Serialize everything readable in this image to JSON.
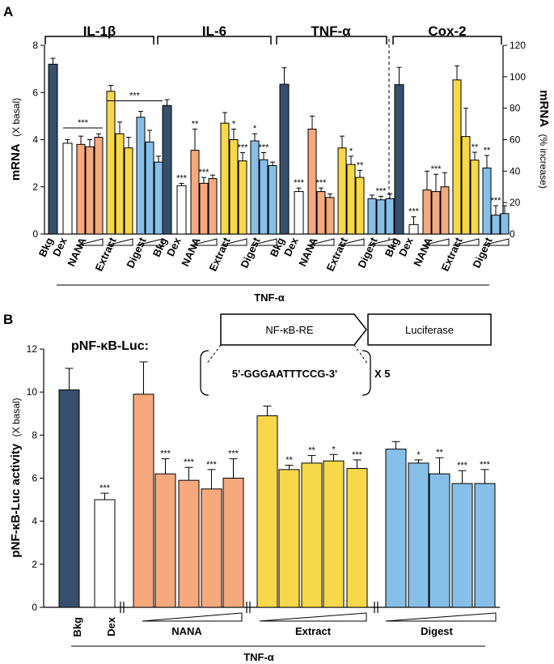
{
  "panel_labels": {
    "a": "A",
    "b": "B"
  },
  "colors": {
    "bkg": "#364f6b",
    "dex": "#ffffff",
    "nana": "#f5a97c",
    "extract": "#f7d84a",
    "digest": "#86bfe8",
    "axis": "#000000"
  },
  "panelA": {
    "left_axis": {
      "label_main": "mRNA",
      "label_unit": "(X basal)",
      "ticks": [
        "0",
        "2",
        "4",
        "6",
        "8"
      ]
    },
    "right_axis": {
      "label_main": "mRNA",
      "label_unit": "(% increase)",
      "ticks": [
        "0",
        "20",
        "40",
        "60",
        "80",
        "100",
        "120"
      ]
    },
    "groups": [
      {
        "title": "IL-1β"
      },
      {
        "title": "IL-6"
      },
      {
        "title": "TNF-α"
      },
      {
        "title": "Cox-2"
      }
    ],
    "xlabels": [
      "Bkg",
      "Dex",
      "NANA",
      "Extract",
      "Digest"
    ],
    "bottom_label": "TNF-α"
  },
  "panelB": {
    "axis": {
      "label_main": "pNF-κB-Luc activity",
      "label_unit": "(X basal)",
      "ticks": [
        "0",
        "2",
        "4",
        "6",
        "8",
        "10",
        "12"
      ]
    },
    "construct": {
      "title": "pNF-κB-Luc:",
      "box1": "NF-κB-RE",
      "box2": "Luciferase",
      "sequence": "5'-GGGAATTTCCG-3'",
      "repeat": "X 5"
    },
    "xlabels": [
      "Bkg",
      "Dex",
      "NANA",
      "Extract",
      "Digest"
    ],
    "bottom_label": "TNF-α"
  },
  "chart_data": [
    {
      "type": "bar",
      "title": "IL-1β",
      "ylabel": "mRNA (X basal)",
      "ylim": [
        0,
        8
      ],
      "categories": [
        "Bkg",
        "Dex",
        "NANA-1",
        "NANA-2",
        "NANA-3",
        "Extract-1",
        "Extract-2",
        "Extract-3",
        "Digest-1",
        "Digest-2",
        "Digest-3"
      ],
      "values": [
        7.2,
        3.85,
        3.8,
        3.7,
        4.1,
        6.05,
        4.25,
        3.65,
        4.95,
        3.9,
        3.05
      ],
      "errors": [
        0.25,
        0.15,
        0.35,
        0.3,
        0.15,
        0.25,
        0.5,
        0.45,
        0.25,
        0.5,
        0.25
      ],
      "annotations": [
        {
          "label": "***",
          "from": "Dex",
          "to": "NANA-3",
          "value": 4.5
        },
        {
          "label": "***",
          "from": "Extract-1",
          "to": "Digest-3",
          "value": 5.65
        }
      ]
    },
    {
      "type": "bar",
      "title": "IL-6",
      "ylabel": "mRNA (X basal)",
      "ylim": [
        0,
        8
      ],
      "categories": [
        "Bkg",
        "Dex",
        "NANA-1",
        "NANA-2",
        "NANA-3",
        "Extract-1",
        "Extract-2",
        "Extract-3",
        "Digest-1",
        "Digest-2",
        "Digest-3"
      ],
      "values": [
        5.45,
        2.05,
        3.55,
        2.15,
        2.35,
        4.7,
        4.0,
        3.1,
        3.95,
        3.15,
        2.9
      ],
      "errors": [
        0.25,
        0.1,
        0.9,
        0.25,
        0.15,
        0.45,
        0.45,
        0.35,
        0.3,
        0.3,
        0.15
      ],
      "stars": [
        "",
        "***",
        "**",
        "***",
        "",
        "",
        "*",
        "***",
        "*",
        "***",
        ""
      ]
    },
    {
      "type": "bar",
      "title": "TNF-α",
      "ylabel": "mRNA (X basal)",
      "ylim": [
        0,
        8
      ],
      "categories": [
        "Bkg",
        "Dex",
        "NANA-1",
        "NANA-2",
        "NANA-3",
        "Extract-1",
        "Extract-2",
        "Extract-3",
        "Digest-1",
        "Digest-2",
        "Digest-3"
      ],
      "values": [
        6.35,
        1.8,
        4.45,
        1.8,
        1.55,
        3.65,
        2.95,
        2.4,
        1.5,
        1.45,
        1.5
      ],
      "errors": [
        0.7,
        0.15,
        0.55,
        0.15,
        0.15,
        0.5,
        0.35,
        0.3,
        0.15,
        0.15,
        0.2
      ],
      "stars": [
        "",
        "***",
        "",
        "***",
        "",
        "",
        "*",
        "**",
        "",
        "***",
        ""
      ]
    },
    {
      "type": "bar",
      "title": "Cox-2",
      "ylabel": "mRNA (% increase)",
      "ylim": [
        0,
        120
      ],
      "categories": [
        "Bkg",
        "Dex",
        "NANA-1",
        "NANA-2",
        "NANA-3",
        "Extract-1",
        "Extract-2",
        "Extract-3",
        "Digest-1",
        "Digest-2",
        "Digest-3"
      ],
      "values": [
        95,
        6,
        28,
        27,
        30,
        98,
        62,
        47,
        42,
        12,
        13
      ],
      "errors": [
        11,
        5,
        12,
        11,
        9,
        9,
        18,
        5,
        8,
        6,
        5
      ],
      "stars": [
        "",
        "***",
        "",
        "***",
        "",
        "",
        "",
        "**",
        "**",
        "***",
        ""
      ]
    },
    {
      "type": "bar",
      "title": "pNF-κB-Luc",
      "ylabel": "pNF-κB-Luc activity (X basal)",
      "ylim": [
        0,
        12
      ],
      "categories": [
        "Bkg",
        "Dex",
        "NANA-1",
        "NANA-2",
        "NANA-3",
        "NANA-4",
        "NANA-5",
        "Extract-1",
        "Extract-2",
        "Extract-3",
        "Extract-4",
        "Extract-5",
        "Digest-1",
        "Digest-2",
        "Digest-3",
        "Digest-4",
        "Digest-5"
      ],
      "values": [
        10.1,
        5.0,
        9.9,
        6.2,
        5.9,
        5.5,
        6.0,
        8.9,
        6.4,
        6.7,
        6.8,
        6.45,
        7.35,
        6.7,
        6.2,
        5.75,
        5.75
      ],
      "errors": [
        1.0,
        0.3,
        1.5,
        0.7,
        0.6,
        0.9,
        0.9,
        0.45,
        0.2,
        0.35,
        0.3,
        0.4,
        0.35,
        0.15,
        0.75,
        0.6,
        0.65
      ],
      "stars": [
        "",
        "***",
        "",
        "***",
        "***",
        "***",
        "***",
        "",
        "**",
        "**",
        "*",
        "***",
        "",
        "*",
        "**",
        "***",
        "***"
      ]
    }
  ]
}
